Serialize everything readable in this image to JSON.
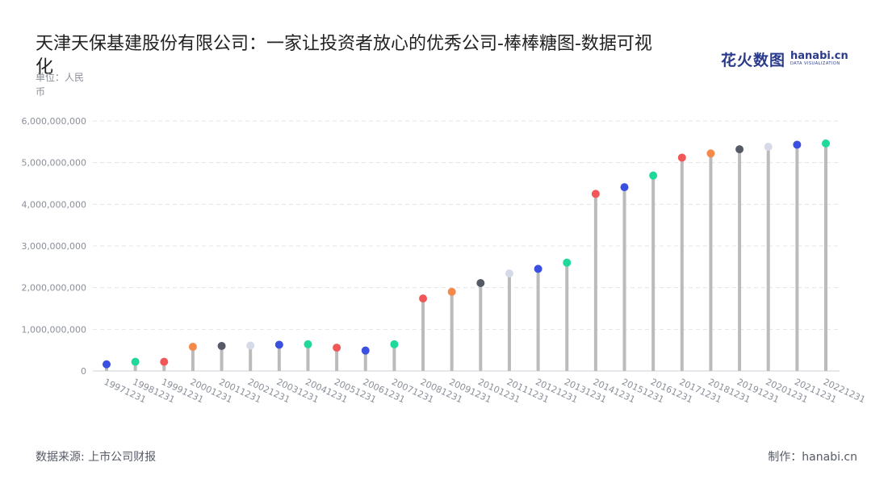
{
  "header": {
    "title": "天津天保基建股份有限公司：一家让投资者放心的优秀公司-棒棒糖图-数据可视化",
    "unit": "单位：人民币"
  },
  "logo": {
    "cn": "花火数图",
    "en": "hanabi.cn",
    "en_sub": "DATA VISUALIZATION"
  },
  "footer": {
    "source": "数据来源: 上市公司财报",
    "maker": "制作：hanabi.cn"
  },
  "chart_data": {
    "type": "lollipop",
    "categories": [
      "19971231",
      "19981231",
      "19991231",
      "20001231",
      "20011231",
      "20021231",
      "20031231",
      "20041231",
      "20051231",
      "20061231",
      "20071231",
      "20081231",
      "20091231",
      "20101231",
      "20111231",
      "20121231",
      "20131231",
      "20141231",
      "20151231",
      "20161231",
      "20171231",
      "20181231",
      "20191231",
      "20201231",
      "20211231",
      "20221231"
    ],
    "values": [
      160000000,
      220000000,
      220000000,
      580000000,
      600000000,
      610000000,
      630000000,
      640000000,
      560000000,
      490000000,
      640000000,
      1740000000,
      1900000000,
      2110000000,
      2340000000,
      2450000000,
      2600000000,
      4250000000,
      4410000000,
      4690000000,
      5120000000,
      5220000000,
      5320000000,
      5380000000,
      5430000000,
      5460000000
    ],
    "dot_colors": [
      "#3b4fe0",
      "#1ed99b",
      "#f25757",
      "#f4894b",
      "#555a66",
      "#d6dae8",
      "#3b4fe0",
      "#1ed99b",
      "#f25757",
      "#3b4fe0",
      "#1ed99b",
      "#f25757",
      "#f4894b",
      "#555a66",
      "#d6dae8",
      "#3b4fe0",
      "#1ed99b",
      "#f25757",
      "#3b4fe0",
      "#1ed99b",
      "#f25757",
      "#f4894b",
      "#555a66",
      "#d6dae8",
      "#3b4fe0",
      "#1ed99b"
    ],
    "stem_color": "#bbbbbb",
    "ylim": [
      0,
      6000000000
    ],
    "y_ticks": [
      "0",
      "1,000,000,000",
      "2,000,000,000",
      "3,000,000,000",
      "4,000,000,000",
      "5,000,000,000",
      "6,000,000,000"
    ],
    "grid": true
  }
}
